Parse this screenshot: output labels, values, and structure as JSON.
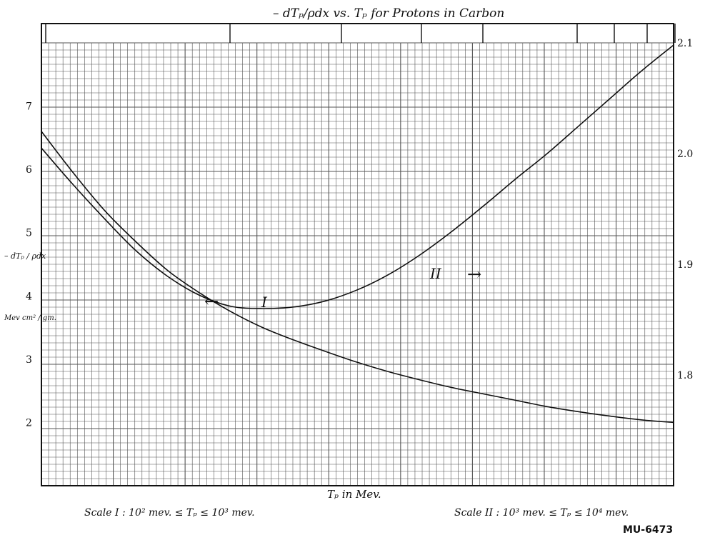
{
  "chart_data": {
    "type": "line",
    "title": "– dTₚ/ρdx vs. Tₚ for Protons in Carbon",
    "xlabel": "Tₚ in Mev.",
    "ylabel_left_lines": [
      "– dTₚ / ρdx",
      "Mev cm² / gm."
    ],
    "y_left_ticks": [
      "2",
      "3",
      "4",
      "5",
      "6",
      "7"
    ],
    "y_right_ticks": [
      "1.8",
      "1.9",
      "2.0",
      "2.1"
    ],
    "ylim_left": [
      1.0,
      8.0
    ],
    "ylim_right": [
      1.7,
      2.1
    ],
    "grid": true,
    "scales": {
      "scale_1": "Scale I :  10² mev. ≤ Tₚ ≤ 10³ mev.",
      "scale_2": "Scale II :  10³ mev. ≤ Tₚ ≤ 10⁴ mev."
    },
    "series": [
      {
        "name": "I",
        "axis": "left",
        "arrow": "←",
        "x_fraction": [
          0.0,
          0.05,
          0.1,
          0.15,
          0.2,
          0.25,
          0.3,
          0.35,
          0.4,
          0.45,
          0.5,
          0.55,
          0.6,
          0.65,
          0.7,
          0.75,
          0.8,
          0.85,
          0.9,
          0.95,
          1.0
        ],
        "values": [
          6.6,
          5.95,
          5.35,
          4.85,
          4.4,
          4.05,
          3.75,
          3.5,
          3.3,
          3.12,
          2.95,
          2.8,
          2.67,
          2.55,
          2.45,
          2.35,
          2.25,
          2.17,
          2.1,
          2.04,
          2.0
        ]
      },
      {
        "name": "II",
        "axis": "right",
        "arrow": "→",
        "x_fraction": [
          0.0,
          0.05,
          0.1,
          0.15,
          0.2,
          0.25,
          0.3,
          0.35,
          0.4,
          0.45,
          0.5,
          0.55,
          0.6,
          0.65,
          0.7,
          0.75,
          0.8,
          0.85,
          0.9,
          0.95,
          1.0
        ],
        "values": [
          2.005,
          1.972,
          1.941,
          1.912,
          1.889,
          1.872,
          1.862,
          1.86,
          1.8615,
          1.867,
          1.877,
          1.891,
          1.909,
          1.93,
          1.953,
          1.977,
          2.0,
          2.025,
          2.05,
          2.075,
          2.098
        ]
      }
    ],
    "figure_id": "MU-6473",
    "colors": {
      "ink": "#111111",
      "grid_fine": "#555555",
      "paper": "#ffffff"
    }
  }
}
